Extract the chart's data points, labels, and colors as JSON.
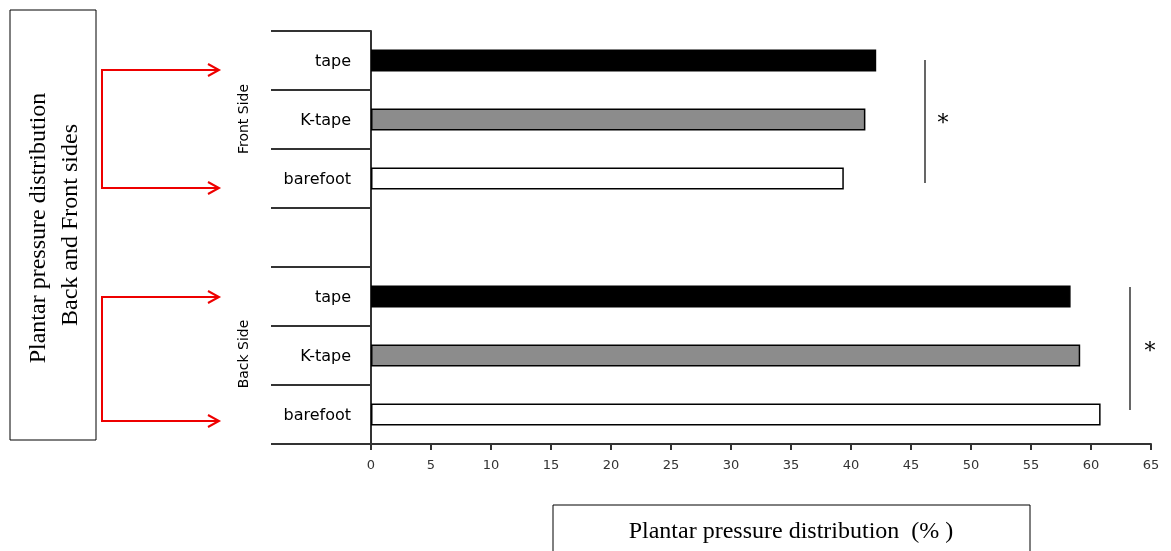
{
  "chart_data": {
    "type": "bar",
    "orientation": "horizontal",
    "xlabel": "Plantar pressure distribution  (% )",
    "categories": [
      "tape",
      "K-tape",
      "barefoot",
      null,
      "tape",
      "K-tape",
      "barefoot"
    ],
    "values": [
      42.1,
      41.2,
      39.4,
      null,
      58.3,
      59.1,
      60.8
    ],
    "colors": [
      "#000000",
      "#8c8c8c",
      "#ffffff",
      null,
      "#000000",
      "#8c8c8c",
      "#ffffff"
    ],
    "xlim": [
      0,
      65
    ],
    "xticks": [
      0,
      5,
      10,
      15,
      20,
      25,
      30,
      35,
      40,
      45,
      50,
      55,
      60,
      65
    ],
    "grid": false,
    "annotations": [
      "Plantar pressure distribution Back and Front sides",
      "Front Side",
      "Back Side",
      "*",
      "*"
    ]
  }
}
